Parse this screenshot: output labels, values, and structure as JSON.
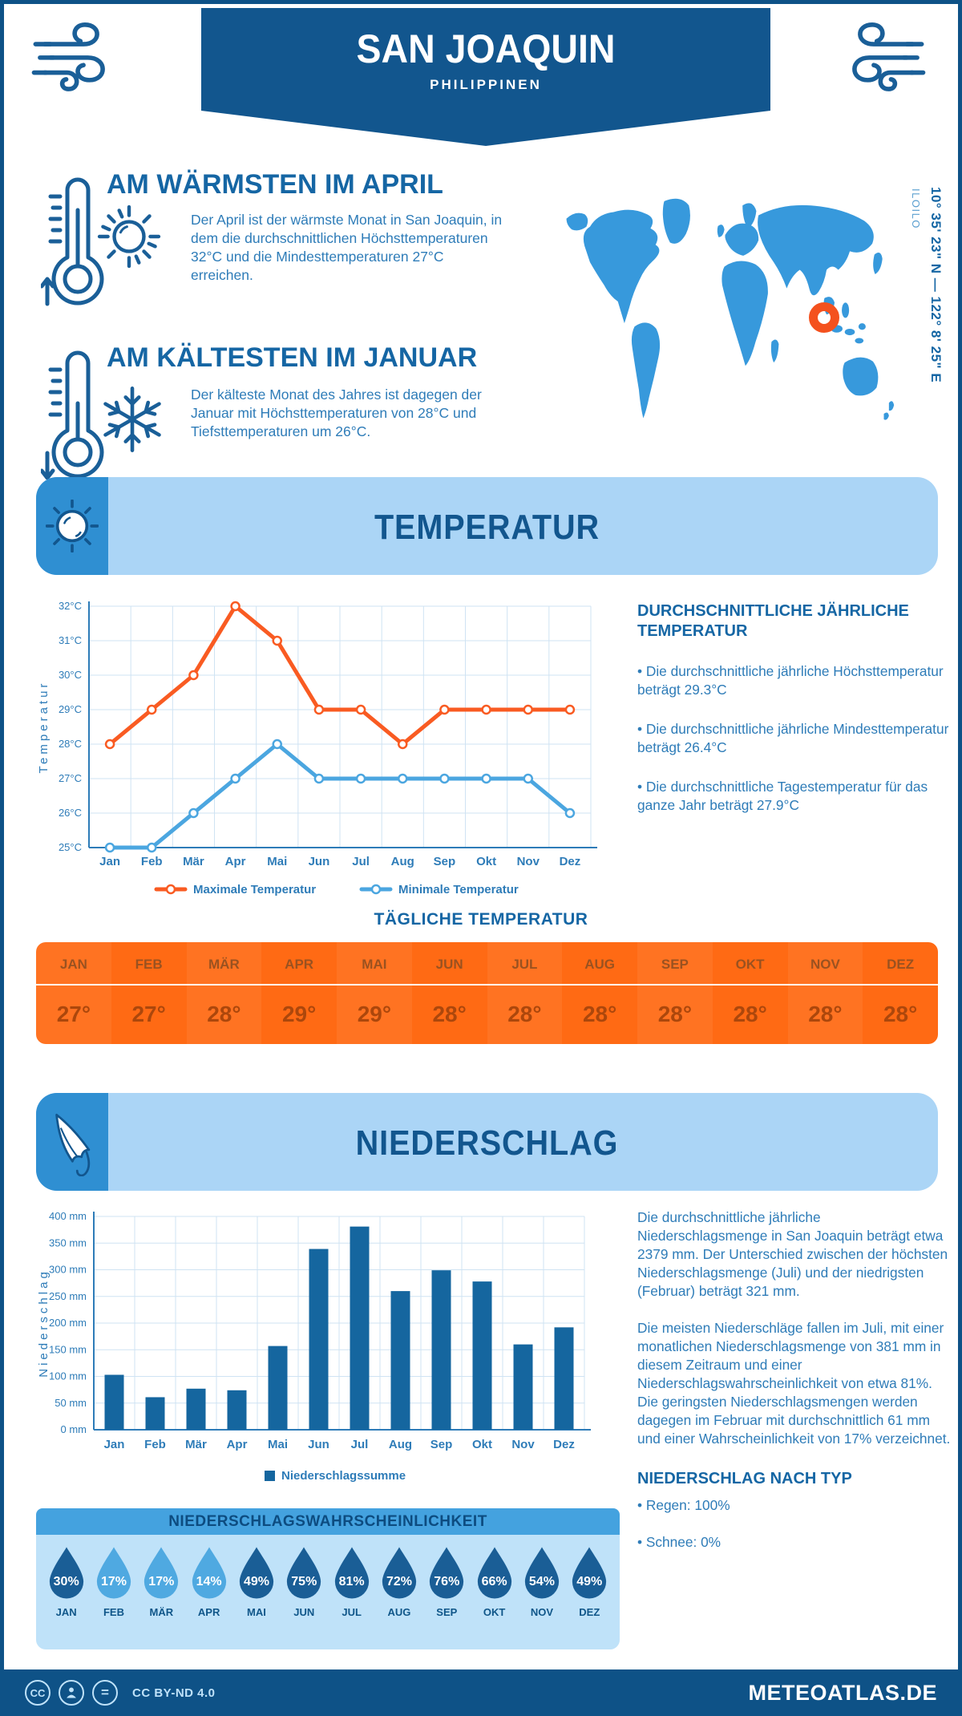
{
  "header": {
    "title": "SAN JOAQUIN",
    "subtitle": "PHILIPPINEN"
  },
  "highlights": {
    "warmest": {
      "title": "AM WÄRMSTEN IM APRIL",
      "text": "Der April ist der wärmste Monat in San Joaquin, in dem die durchschnittlichen Höchsttemperaturen 32°C und die Mindesttemperaturen 27°C erreichen."
    },
    "coldest": {
      "title": "AM KÄLTESTEN IM JANUAR",
      "text": "Der kälteste Monat des Jahres ist dagegen der Januar mit Höchsttemperaturen von 28°C und Tiefsttemperaturen um 26°C."
    }
  },
  "map": {
    "coordinates": "10° 35' 23\" N — 122° 8' 25\" E",
    "region": "ILOILO"
  },
  "temperature": {
    "section_title": "TEMPERATUR",
    "aside_heading": "DURCHSCHNITTLICHE JÄHRLICHE TEMPERATUR",
    "aside_bullets": [
      "• Die durchschnittliche jährliche Höchsttemperatur beträgt 29.3°C",
      "• Die durchschnittliche jährliche Mindesttemperatur beträgt 26.4°C",
      "• Die durchschnittliche Tagestemperatur für das ganze Jahr beträgt 27.9°C"
    ],
    "daily_heading": "TÄGLICHE TEMPERATUR",
    "daily": [
      {
        "month": "JAN",
        "value": "27°"
      },
      {
        "month": "FEB",
        "value": "27°"
      },
      {
        "month": "MÄR",
        "value": "28°"
      },
      {
        "month": "APR",
        "value": "29°"
      },
      {
        "month": "MAI",
        "value": "29°"
      },
      {
        "month": "JUN",
        "value": "28°"
      },
      {
        "month": "JUL",
        "value": "28°"
      },
      {
        "month": "AUG",
        "value": "28°"
      },
      {
        "month": "SEP",
        "value": "28°"
      },
      {
        "month": "OKT",
        "value": "28°"
      },
      {
        "month": "NOV",
        "value": "28°"
      },
      {
        "month": "DEZ",
        "value": "28°"
      }
    ]
  },
  "precipitation": {
    "section_title": "NIEDERSCHLAG",
    "paragraphs": [
      "Die durchschnittliche jährliche Niederschlagsmenge in San Joaquin beträgt etwa 2379 mm. Der Unterschied zwischen der höchsten Niederschlagsmenge (Juli) und der niedrigsten (Februar) beträgt 321 mm.",
      "Die meisten Niederschläge fallen im Juli, mit einer monatlichen Niederschlagsmenge von 381 mm in diesem Zeitraum und einer Niederschlagswahrscheinlichkeit von etwa 81%. Die geringsten Niederschlagsmengen werden dagegen im Februar mit durchschnittlich 61 mm und einer Wahrscheinlichkeit von 17% verzeichnet."
    ],
    "type_heading": "NIEDERSCHLAG NACH TYP",
    "type_bullets": [
      "• Regen: 100%",
      "• Schnee: 0%"
    ],
    "probability_heading": "NIEDERSCHLAGSWAHRSCHEINLICHKEIT",
    "probability": [
      {
        "month": "JAN",
        "pct": "30%",
        "tone": "dark"
      },
      {
        "month": "FEB",
        "pct": "17%",
        "tone": "light"
      },
      {
        "month": "MÄR",
        "pct": "17%",
        "tone": "light"
      },
      {
        "month": "APR",
        "pct": "14%",
        "tone": "light"
      },
      {
        "month": "MAI",
        "pct": "49%",
        "tone": "dark"
      },
      {
        "month": "JUN",
        "pct": "75%",
        "tone": "dark"
      },
      {
        "month": "JUL",
        "pct": "81%",
        "tone": "dark"
      },
      {
        "month": "AUG",
        "pct": "72%",
        "tone": "dark"
      },
      {
        "month": "SEP",
        "pct": "76%",
        "tone": "dark"
      },
      {
        "month": "OKT",
        "pct": "66%",
        "tone": "dark"
      },
      {
        "month": "NOV",
        "pct": "54%",
        "tone": "dark"
      },
      {
        "month": "DEZ",
        "pct": "49%",
        "tone": "dark"
      }
    ]
  },
  "footer": {
    "license": "CC BY-ND 4.0",
    "site": "METEOATLAS.DE"
  },
  "chart_data": [
    {
      "type": "line",
      "title": "",
      "categories": [
        "Jan",
        "Feb",
        "Mär",
        "Apr",
        "Mai",
        "Jun",
        "Jul",
        "Aug",
        "Sep",
        "Okt",
        "Nov",
        "Dez"
      ],
      "series": [
        {
          "name": "Maximale Temperatur",
          "color": "#F95B22",
          "values": [
            28,
            29,
            30,
            32,
            31,
            29,
            29,
            28,
            29,
            29,
            29,
            29
          ]
        },
        {
          "name": "Minimale Temperatur",
          "color": "#4BA6E0",
          "values": [
            25,
            25,
            26,
            27,
            28,
            27,
            27,
            27,
            27,
            27,
            27,
            26
          ]
        }
      ],
      "xlabel": "",
      "ylabel": "Temperatur",
      "ylim": [
        25,
        32
      ],
      "ytick_step": 1,
      "ytick_suffix": "°C",
      "grid": true,
      "legend_position": "bottom"
    },
    {
      "type": "bar",
      "title": "",
      "categories": [
        "Jan",
        "Feb",
        "Mär",
        "Apr",
        "Mai",
        "Jun",
        "Jul",
        "Aug",
        "Sep",
        "Okt",
        "Nov",
        "Dez"
      ],
      "series": [
        {
          "name": "Niederschlagssumme",
          "color": "#15669F",
          "values": [
            103,
            61,
            77,
            74,
            157,
            339,
            381,
            260,
            299,
            278,
            160,
            192
          ]
        }
      ],
      "xlabel": "",
      "ylabel": "Niederschlag",
      "ylim": [
        0,
        400
      ],
      "ytick_step": 50,
      "ytick_suffix": " mm",
      "grid": true,
      "legend_position": "bottom"
    }
  ],
  "colors": {
    "primary_dark": "#12568E",
    "heading_blue": "#1566A4",
    "body_blue": "#2E7CB8",
    "panel_light": "#ABD5F6",
    "panel_tab": "#2F8FD2",
    "map_land": "#3799DC",
    "marker_orange": "#F4511E",
    "max_line": "#F95B22",
    "min_line": "#4BA6E0",
    "bar_blue": "#15669F",
    "table_orange_a": "#FF7322",
    "table_orange_b": "#FF6A14",
    "table_month_text": "#9A5220",
    "table_value_text": "#AC470C",
    "prob_header": "#44A2DF",
    "prob_panel": "#BFE2F9",
    "drop_dark": "#1A5E96",
    "drop_light": "#4FA9E1",
    "footer": "#0E5287"
  }
}
